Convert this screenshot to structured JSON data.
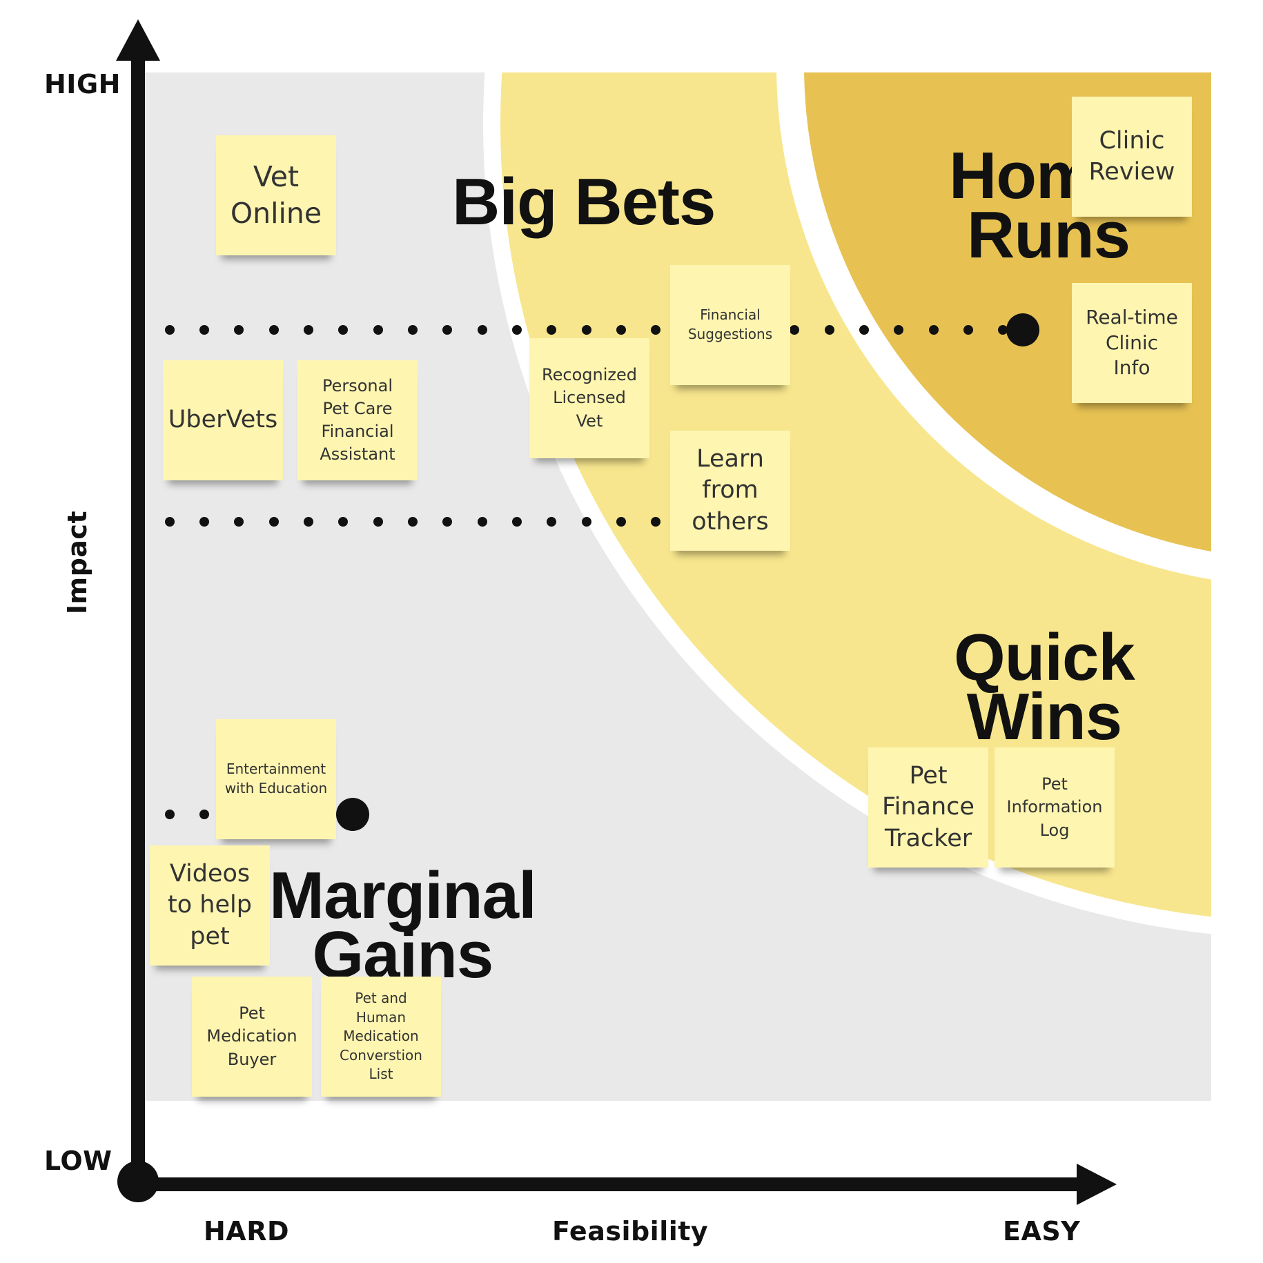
{
  "axes": {
    "y_high": "HIGH",
    "y_low": "LOW",
    "y_label": "Impact",
    "x_hard": "HARD",
    "x_easy": "EASY",
    "x_label": "Feasibility"
  },
  "regions": {
    "big_bets": "Big Bets",
    "home_runs_line1": "Hom",
    "home_runs_line2": "Runs",
    "quick_wins": "Quick\nWins",
    "marginal_gains": "Marginal\nGains"
  },
  "colors": {
    "background_region": "#e9e9e9",
    "big_bets_region": "#f7e68d",
    "home_runs_region": "#e7c253",
    "sticky_note": "#fdf5b0",
    "axis": "#111111"
  },
  "stickies": {
    "vet_online": "Vet\nOnline",
    "ubervets": "UberVets",
    "personal_pet_care": "Personal\nPet Care\nFinancial\nAssistant",
    "recognized_vet": "Recognized\nLicensed\nVet",
    "financial_suggestions": "Financial\nSuggestions",
    "learn_from_others": "Learn\nfrom\nothers",
    "clinic_review": "Clinic\nReview",
    "realtime_clinic": "Real-time\nClinic\nInfo",
    "pet_finance_tracker": "Pet\nFinance\nTracker",
    "pet_information_log": "Pet\nInformation\nLog",
    "entertainment_education": "Entertainment\nwith Education",
    "videos_help_pet": "Videos\nto help\npet",
    "pet_medication_buyer": "Pet\nMedication\nBuyer",
    "pet_human_medication": "Pet and\nHuman\nMedication\nConverstion\nList"
  }
}
